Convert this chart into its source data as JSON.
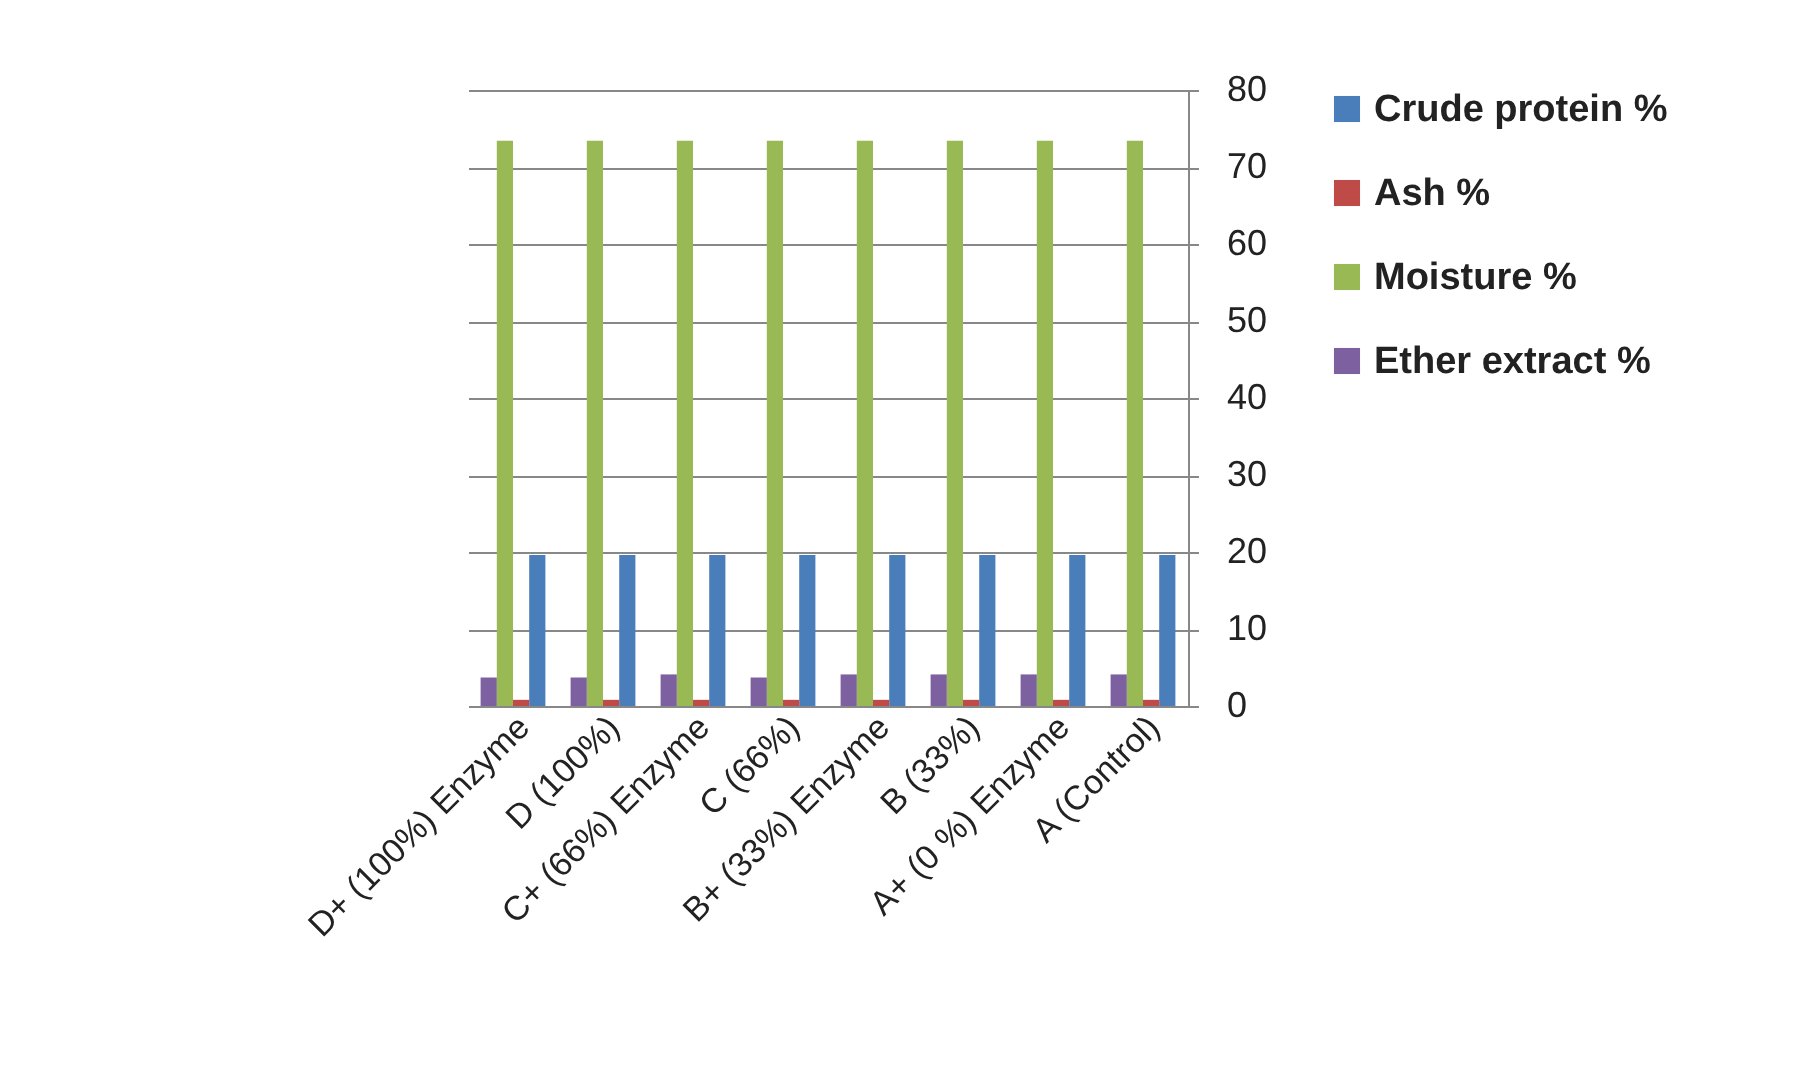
{
  "chart_data": {
    "type": "bar",
    "categories": [
      "D+ (100%) Enzyme",
      "D (100%)",
      "C+ (66%) Enzyme",
      "C (66%)",
      "B+ (33%) Enzyme",
      "B (33%)",
      "A+ (0 %) Enzyme",
      "A (Control)"
    ],
    "series": [
      {
        "name": "Crude protein %",
        "color": "#4a7ebb",
        "values": [
          19.6,
          19.6,
          19.6,
          19.6,
          19.6,
          19.6,
          19.6,
          19.6
        ]
      },
      {
        "name": "Ash %",
        "color": "#be4b48",
        "values": [
          0.8,
          0.8,
          0.8,
          0.8,
          0.8,
          0.8,
          0.8,
          0.8
        ]
      },
      {
        "name": "Moisture %",
        "color": "#98b954",
        "values": [
          73.4,
          73.4,
          73.4,
          73.4,
          73.4,
          73.4,
          73.4,
          73.4
        ]
      },
      {
        "name": "Ether extract %",
        "color": "#7d60a0",
        "values": [
          3.7,
          3.7,
          4.1,
          3.7,
          4.1,
          4.1,
          4.1,
          4.1
        ]
      }
    ],
    "ylim": [
      0,
      80
    ],
    "yticks": [
      0,
      10,
      20,
      30,
      40,
      50,
      60,
      70,
      80
    ],
    "grid": "y",
    "legend": "right"
  }
}
